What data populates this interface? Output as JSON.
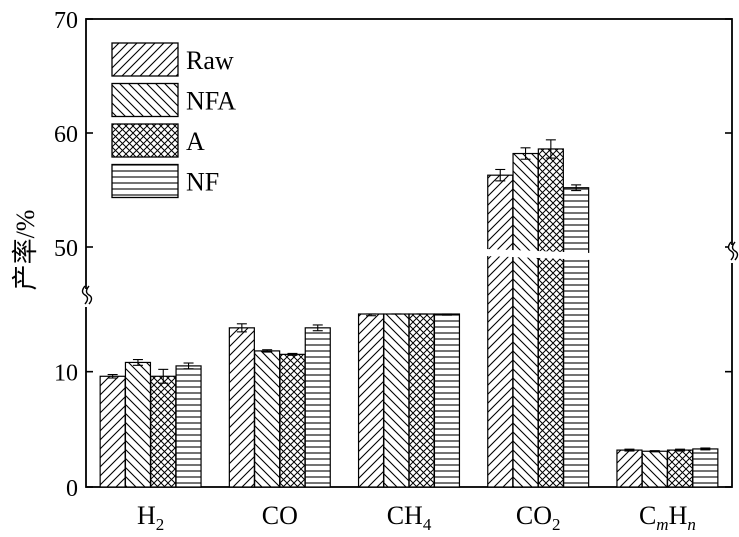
{
  "chart_data": {
    "type": "bar",
    "title": "",
    "xlabel": "",
    "ylabel": "产率/%",
    "ylim": [
      0,
      70
    ],
    "axis_break": {
      "lower_max": 15,
      "upper_min": 50,
      "upper_max": 70
    },
    "yticks": [
      {
        "value": 0,
        "label": "0"
      },
      {
        "value": 10,
        "label": "10"
      },
      {
        "value": 50,
        "label": "50"
      },
      {
        "value": 60,
        "label": "60"
      },
      {
        "value": 70,
        "label": "70"
      }
    ],
    "categories": [
      {
        "base": "H",
        "sub": "2",
        "sub_italic": false,
        "mid": "",
        "end": ""
      },
      {
        "base": "CO",
        "sub": "",
        "sub_italic": false,
        "mid": "",
        "end": ""
      },
      {
        "base": "CH",
        "sub": "4",
        "sub_italic": false,
        "mid": "",
        "end": ""
      },
      {
        "base": "CO",
        "sub": "2",
        "sub_italic": false,
        "mid": "",
        "end": ""
      },
      {
        "base": "C",
        "sub": "m",
        "sub_italic": true,
        "mid": "H",
        "end": "n"
      }
    ],
    "series": [
      {
        "name": "Raw",
        "pattern": "diag-right",
        "values": [
          9.6,
          13.8,
          15.3,
          56.3,
          3.2
        ],
        "errors": [
          0.15,
          0.35,
          0.45,
          0.5,
          0.08
        ]
      },
      {
        "name": "NFA",
        "pattern": "diag-left",
        "values": [
          10.8,
          11.8,
          15.2,
          58.2,
          3.1
        ],
        "errors": [
          0.25,
          0.1,
          0.1,
          0.5,
          0.05
        ]
      },
      {
        "name": "A",
        "pattern": "crosshatch",
        "values": [
          9.6,
          11.5,
          15.8,
          58.6,
          3.2
        ],
        "errors": [
          0.6,
          0.08,
          0.35,
          0.8,
          0.08
        ]
      },
      {
        "name": "NF",
        "pattern": "horizontal",
        "values": [
          10.5,
          13.8,
          15.1,
          55.2,
          3.3
        ],
        "errors": [
          0.25,
          0.25,
          0.2,
          0.25,
          0.08
        ]
      }
    ],
    "legend": "top-left",
    "grid": false
  }
}
